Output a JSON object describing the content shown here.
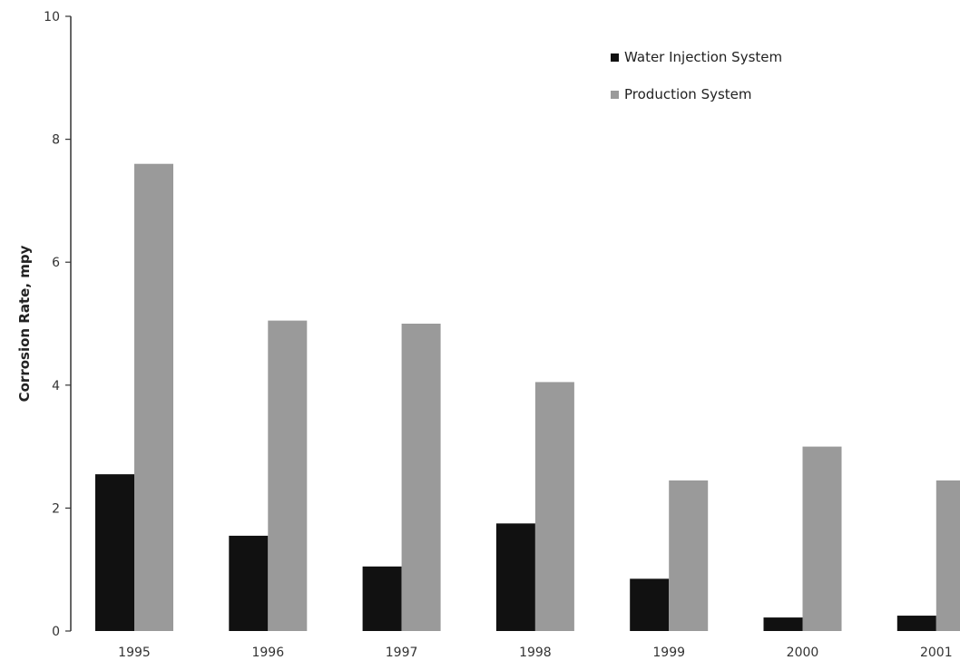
{
  "chart_data": {
    "type": "bar",
    "title": "",
    "xlabel": "",
    "ylabel": "Corrosion Rate, mpy",
    "ylim": [
      0,
      10
    ],
    "yticks": [
      "0",
      "2",
      "4",
      "6",
      "8",
      "10"
    ],
    "categories": [
      "1995",
      "1996",
      "1997",
      "1998",
      "1999",
      "2000",
      "2001"
    ],
    "series": [
      {
        "name": "Water Injection System",
        "color": "#111111",
        "values": [
          2.55,
          1.55,
          1.05,
          1.75,
          0.85,
          0.22,
          0.25
        ]
      },
      {
        "name": "Production System",
        "color": "#9a9a9a",
        "values": [
          7.6,
          5.05,
          5.0,
          4.05,
          2.45,
          3.0,
          2.45
        ]
      }
    ],
    "grid": false,
    "legend": "top-right"
  }
}
